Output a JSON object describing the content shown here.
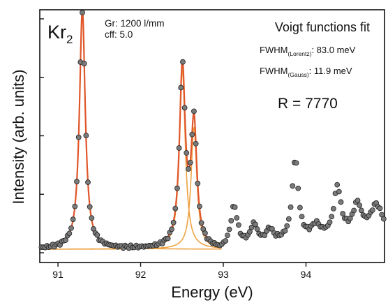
{
  "chart_data": {
    "type": "scatter",
    "title": "",
    "xlabel": "Energy (eV)",
    "ylabel": "Intensity (arb. units)",
    "xlim": [
      90.78,
      94.95
    ],
    "ylim": [
      0,
      1.02
    ],
    "x_ticks": [
      91,
      92,
      93,
      94
    ],
    "x_tick_labels": [
      "91",
      "92",
      "93",
      "94"
    ],
    "y_ticks": [
      0.0,
      0.25,
      0.5,
      0.75,
      1.0
    ],
    "grid": false,
    "annotations": {
      "species_main": "Kr",
      "species_sub": "2",
      "grating": "Gr: 1200 l/mm",
      "cff": "cff: 5.0",
      "fit_title": "Voigt functions fit",
      "fwhm_lorentz_label": "FWHM",
      "fwhm_lorentz_sub": "(Lorentz)",
      "fwhm_lorentz_value": ": 83.0 meV",
      "fwhm_gauss_label": "FWHM",
      "fwhm_gauss_sub": "(Gauss)",
      "fwhm_gauss_value": ": 11.9 meV",
      "resolving_power": "R = 7770"
    },
    "fit_model": {
      "baseline": 0.015,
      "fwhm_lorentz_eV": 0.083,
      "fwhm_gauss_eV": 0.0119,
      "peaks": [
        {
          "center": 91.295,
          "amplitude": 1.02
        },
        {
          "center": 92.505,
          "amplitude": 0.765
        },
        {
          "center": 92.645,
          "amplitude": 0.52
        }
      ],
      "fit_range": [
        90.8,
        92.98
      ]
    },
    "extra_peaks": [
      {
        "center": 93.13,
        "amplitude": 0.175,
        "width": 0.05
      },
      {
        "center": 93.37,
        "amplitude": 0.085,
        "width": 0.05
      },
      {
        "center": 93.56,
        "amplitude": 0.055,
        "width": 0.05
      },
      {
        "center": 93.87,
        "amplitude": 0.345,
        "width": 0.045
      },
      {
        "center": 94.12,
        "amplitude": 0.05,
        "width": 0.06
      },
      {
        "center": 94.38,
        "amplitude": 0.205,
        "width": 0.05
      },
      {
        "center": 94.62,
        "amplitude": 0.12,
        "width": 0.06
      },
      {
        "center": 94.85,
        "amplitude": 0.11,
        "width": 0.08
      }
    ],
    "extra_baseline_start": 92.98,
    "extra_baseline_slope": 0.04,
    "series": [
      {
        "kind": "data-points",
        "color": "#7a7a7a",
        "stroke": "#222222",
        "x_start": 90.8,
        "x_end": 94.95,
        "step": 0.0225
      },
      {
        "kind": "total-fit",
        "color": "#e0562a"
      },
      {
        "kind": "component-fit",
        "color": "#eda243"
      }
    ]
  }
}
